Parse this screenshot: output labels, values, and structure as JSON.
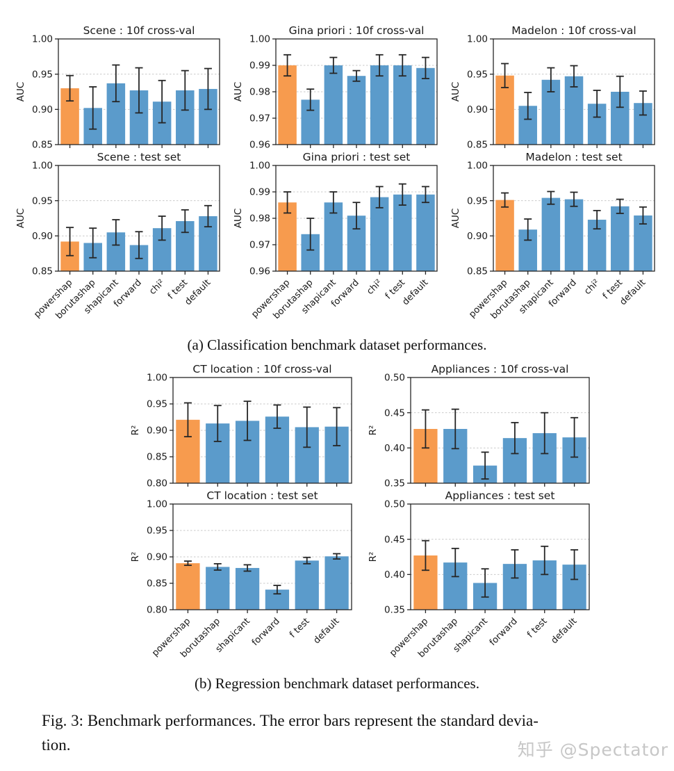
{
  "captions": {
    "a": "(a) Classification benchmark dataset performances.",
    "b": "(b) Regression benchmark dataset performances.",
    "fig_line1": "Fig. 3: Benchmark performances. The error bars represent the standard devia-",
    "fig_line2": "tion.",
    "watermark": "知乎 @Spectator"
  },
  "colors": {
    "highlight_bar": "#f79b4e",
    "default_bar": "#5b9bcb",
    "error_bar": "#262626",
    "gridline": "#c9c9c9",
    "axis": "#262626"
  },
  "chart_data": [
    {
      "type": "bar",
      "title": "Scene : 10f cross-val",
      "ylabel": "AUC",
      "categories": [
        "powershap",
        "borutashap",
        "shapicant",
        "forward",
        "chi²",
        "f test",
        "default"
      ],
      "values": [
        0.93,
        0.902,
        0.937,
        0.927,
        0.911,
        0.927,
        0.929
      ],
      "errors": [
        0.018,
        0.03,
        0.026,
        0.032,
        0.03,
        0.028,
        0.029
      ],
      "ylim": [
        0.85,
        1.0
      ],
      "yticks": [
        0.85,
        0.9,
        0.95,
        1.0
      ],
      "highlight_index": 0,
      "grid": true,
      "show_xlabels": false
    },
    {
      "type": "bar",
      "title": "Gina priori : 10f cross-val",
      "ylabel": "AUC",
      "categories": [
        "powershap",
        "borutashap",
        "shapicant",
        "forward",
        "chi²",
        "f test",
        "default"
      ],
      "values": [
        0.99,
        0.977,
        0.99,
        0.986,
        0.99,
        0.99,
        0.989
      ],
      "errors": [
        0.004,
        0.004,
        0.003,
        0.002,
        0.004,
        0.004,
        0.004
      ],
      "ylim": [
        0.96,
        1.0
      ],
      "yticks": [
        0.96,
        0.97,
        0.98,
        0.99,
        1.0
      ],
      "highlight_index": 0,
      "grid": true,
      "show_xlabels": false
    },
    {
      "type": "bar",
      "title": "Madelon : 10f cross-val",
      "ylabel": "AUC",
      "categories": [
        "powershap",
        "borutashap",
        "shapicant",
        "forward",
        "chi²",
        "f test",
        "default"
      ],
      "values": [
        0.948,
        0.905,
        0.942,
        0.947,
        0.908,
        0.925,
        0.909
      ],
      "errors": [
        0.017,
        0.019,
        0.017,
        0.015,
        0.019,
        0.022,
        0.017
      ],
      "ylim": [
        0.85,
        1.0
      ],
      "yticks": [
        0.85,
        0.9,
        0.95,
        1.0
      ],
      "highlight_index": 0,
      "grid": true,
      "show_xlabels": false
    },
    {
      "type": "bar",
      "title": "Scene : test set",
      "ylabel": "AUC",
      "categories": [
        "powershap",
        "borutashap",
        "shapicant",
        "forward",
        "chi²",
        "f test",
        "default"
      ],
      "values": [
        0.892,
        0.89,
        0.905,
        0.887,
        0.911,
        0.921,
        0.928
      ],
      "errors": [
        0.02,
        0.021,
        0.018,
        0.019,
        0.017,
        0.016,
        0.015
      ],
      "ylim": [
        0.85,
        1.0
      ],
      "yticks": [
        0.85,
        0.9,
        0.95,
        1.0
      ],
      "highlight_index": 0,
      "grid": true,
      "show_xlabels": true
    },
    {
      "type": "bar",
      "title": "Gina priori : test set",
      "ylabel": "AUC",
      "categories": [
        "powershap",
        "borutashap",
        "shapicant",
        "forward",
        "chi²",
        "f test",
        "default"
      ],
      "values": [
        0.986,
        0.974,
        0.986,
        0.981,
        0.988,
        0.989,
        0.989
      ],
      "errors": [
        0.004,
        0.006,
        0.004,
        0.005,
        0.004,
        0.004,
        0.003
      ],
      "ylim": [
        0.96,
        1.0
      ],
      "yticks": [
        0.96,
        0.97,
        0.98,
        0.99,
        1.0
      ],
      "highlight_index": 0,
      "grid": true,
      "show_xlabels": true
    },
    {
      "type": "bar",
      "title": "Madelon : test set",
      "ylabel": "AUC",
      "categories": [
        "powershap",
        "borutashap",
        "shapicant",
        "forward",
        "chi²",
        "f test",
        "default"
      ],
      "values": [
        0.951,
        0.909,
        0.954,
        0.952,
        0.923,
        0.942,
        0.929
      ],
      "errors": [
        0.01,
        0.015,
        0.009,
        0.01,
        0.013,
        0.01,
        0.012
      ],
      "ylim": [
        0.85,
        1.0
      ],
      "yticks": [
        0.85,
        0.9,
        0.95,
        1.0
      ],
      "highlight_index": 0,
      "grid": true,
      "show_xlabels": true
    },
    {
      "type": "bar",
      "title": "CT location : 10f cross-val",
      "ylabel": "R²",
      "categories": [
        "powershap",
        "borutashap",
        "shapicant",
        "forward",
        "f test",
        "default"
      ],
      "values": [
        0.92,
        0.913,
        0.918,
        0.926,
        0.906,
        0.907
      ],
      "errors": [
        0.032,
        0.034,
        0.037,
        0.022,
        0.038,
        0.036
      ],
      "ylim": [
        0.8,
        1.0
      ],
      "yticks": [
        0.8,
        0.85,
        0.9,
        0.95,
        1.0
      ],
      "highlight_index": 0,
      "grid": true,
      "show_xlabels": false
    },
    {
      "type": "bar",
      "title": "Appliances : 10f cross-val",
      "ylabel": "R²",
      "categories": [
        "powershap",
        "borutashap",
        "shapicant",
        "forward",
        "f test",
        "default"
      ],
      "values": [
        0.427,
        0.427,
        0.375,
        0.414,
        0.421,
        0.415
      ],
      "errors": [
        0.027,
        0.028,
        0.019,
        0.022,
        0.029,
        0.028
      ],
      "ylim": [
        0.35,
        0.5
      ],
      "yticks": [
        0.35,
        0.4,
        0.45,
        0.5
      ],
      "highlight_index": 0,
      "grid": true,
      "show_xlabels": false
    },
    {
      "type": "bar",
      "title": "CT location : test set",
      "ylabel": "R²",
      "categories": [
        "powershap",
        "borutashap",
        "shapicant",
        "forward",
        "f test",
        "default"
      ],
      "values": [
        0.888,
        0.881,
        0.879,
        0.838,
        0.893,
        0.901
      ],
      "errors": [
        0.004,
        0.006,
        0.006,
        0.008,
        0.006,
        0.005
      ],
      "ylim": [
        0.8,
        1.0
      ],
      "yticks": [
        0.8,
        0.85,
        0.9,
        0.95,
        1.0
      ],
      "highlight_index": 0,
      "grid": true,
      "show_xlabels": true
    },
    {
      "type": "bar",
      "title": "Appliances : test set",
      "ylabel": "R²",
      "categories": [
        "powershap",
        "borutashap",
        "shapicant",
        "forward",
        "f test",
        "default"
      ],
      "values": [
        0.427,
        0.417,
        0.388,
        0.415,
        0.42,
        0.414
      ],
      "errors": [
        0.021,
        0.02,
        0.02,
        0.02,
        0.02,
        0.021
      ],
      "ylim": [
        0.35,
        0.5
      ],
      "yticks": [
        0.35,
        0.4,
        0.45,
        0.5
      ],
      "highlight_index": 0,
      "grid": true,
      "show_xlabels": true
    }
  ]
}
